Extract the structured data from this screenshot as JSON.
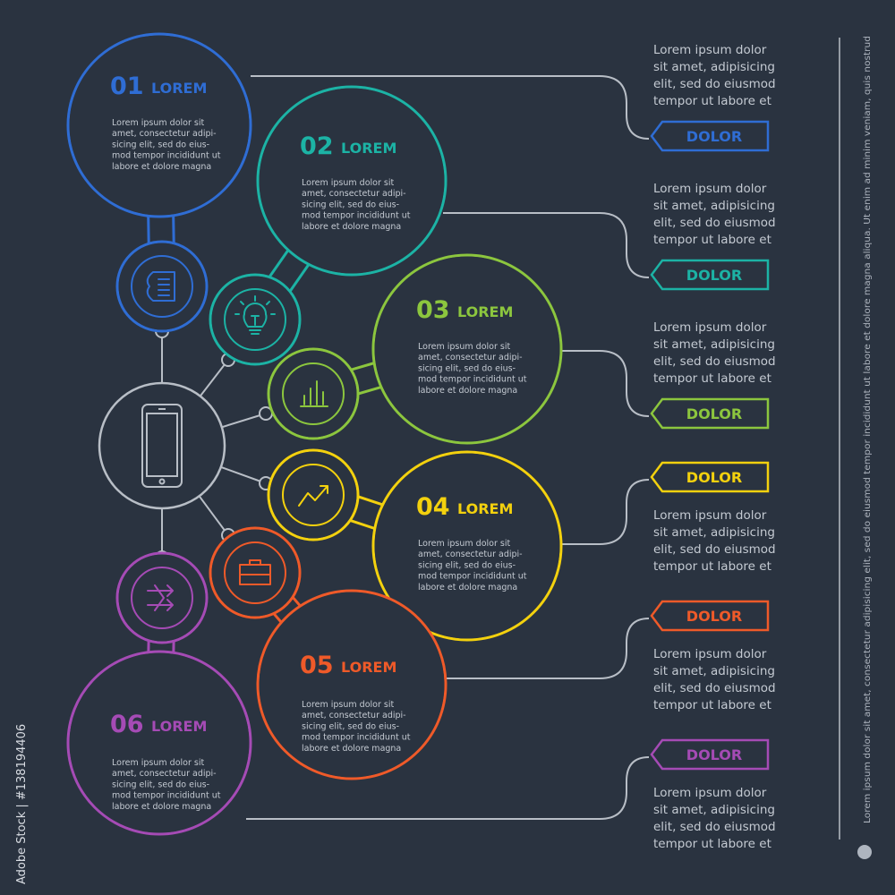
{
  "colors": {
    "background": "#2a3340",
    "connector": "#b8bec6",
    "blue": "#2f6dd4",
    "teal": "#1cb3a5",
    "green": "#8cc63e",
    "yellow": "#f3d10e",
    "orange": "#ef5a29",
    "purple": "#a54bb5"
  },
  "center_icon": "smartphone-icon",
  "steps": [
    {
      "number": "01",
      "title": "LOREM",
      "color": "#2f6dd4",
      "icon": "document-icon",
      "text": [
        "Lorem ipsum dolor sit",
        "amet, consectetur adipi-",
        "sicing elit, sed do eius-",
        "mod tempor incididunt ut",
        "labore et dolore magna"
      ]
    },
    {
      "number": "02",
      "title": "LOREM",
      "color": "#1cb3a5",
      "icon": "lightbulb-icon",
      "text": [
        "Lorem ipsum dolor sit",
        "amet, consectetur adipi-",
        "sicing elit, sed do eius-",
        "mod tempor incididunt ut",
        "labore et dolore magna"
      ]
    },
    {
      "number": "03",
      "title": "LOREM",
      "color": "#8cc63e",
      "icon": "bar-chart-icon",
      "text": [
        "Lorem ipsum dolor sit",
        "amet, consectetur adipi-",
        "sicing elit, sed do eius-",
        "mod tempor incididunt ut",
        "labore et dolore magna"
      ]
    },
    {
      "number": "04",
      "title": "LOREM",
      "color": "#f3d10e",
      "icon": "trend-arrow-icon",
      "text": [
        "Lorem ipsum dolor sit",
        "amet, consectetur adipi-",
        "sicing elit, sed do eius-",
        "mod tempor incididunt ut",
        "labore et dolore magna"
      ]
    },
    {
      "number": "05",
      "title": "LOREM",
      "color": "#ef5a29",
      "icon": "briefcase-icon",
      "text": [
        "Lorem ipsum dolor sit",
        "amet, consectetur adipi-",
        "sicing elit, sed do eius-",
        "mod tempor incididunt ut",
        "labore et dolore magna"
      ]
    },
    {
      "number": "06",
      "title": "LOREM",
      "color": "#a54bb5",
      "icon": "arrows-icon",
      "text": [
        "Lorem ipsum dolor sit",
        "amet, consectetur adipi-",
        "sicing elit, sed do eius-",
        "mod tempor incididunt ut",
        "labore et dolore magna"
      ]
    }
  ],
  "side_items": [
    {
      "tag": "DOLOR",
      "color": "#2f6dd4",
      "text": [
        "Lorem ipsum dolor",
        "sit amet, adipisicing",
        "elit, sed do eiusmod",
        "tempor ut labore et"
      ]
    },
    {
      "tag": "DOLOR",
      "color": "#1cb3a5",
      "text": [
        "Lorem ipsum dolor",
        "sit amet, adipisicing",
        "elit, sed do eiusmod",
        "tempor ut labore et"
      ]
    },
    {
      "tag": "DOLOR",
      "color": "#8cc63e",
      "text": [
        "Lorem ipsum dolor",
        "sit amet, adipisicing",
        "elit, sed do eiusmod",
        "tempor ut labore et"
      ]
    },
    {
      "tag": "DOLOR",
      "color": "#f3d10e",
      "text": [
        "Lorem ipsum dolor",
        "sit amet, adipisicing",
        "elit, sed do eiusmod",
        "tempor ut labore et"
      ]
    },
    {
      "tag": "DOLOR",
      "color": "#ef5a29",
      "text": [
        "Lorem ipsum dolor",
        "sit amet, adipisicing",
        "elit, sed do eiusmod",
        "tempor ut labore et"
      ]
    },
    {
      "tag": "DOLOR",
      "color": "#a54bb5",
      "text": [
        "Lorem ipsum dolor",
        "sit amet, adipisicing",
        "elit, sed do eiusmod",
        "tempor ut labore et"
      ]
    }
  ],
  "vertical_text": "Lorem ipsum dolor sit amet, consectetur adipisicing elit, sed do eiusmod tempor incididunt ut labore et dolore magna aliqua. Ut enim ad minim veniam, quis nostrud",
  "credit": "Adobe Stock | #138194406"
}
